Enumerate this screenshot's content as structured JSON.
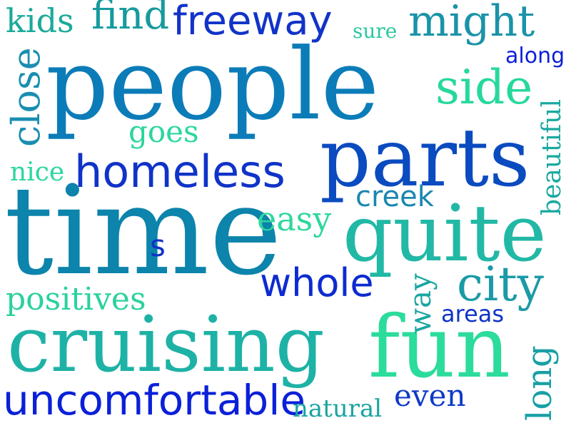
{
  "colors": {
    "teal": "#1a9a9a",
    "deep_blue": "#1133cc",
    "royal_blue": "#0a22d8",
    "cerulean": "#0a7ab8",
    "aqua_green": "#22c49a",
    "mint": "#2de39a",
    "ocean": "#0a8aa8"
  },
  "words": [
    "kids",
    "find",
    "freeway",
    "sure",
    "might",
    "along",
    "close",
    "people",
    "side",
    "goes",
    "beautiful",
    "nice",
    "homeless",
    "parts",
    "creek",
    "time",
    "easy",
    "quite",
    "s",
    "whole",
    "city",
    "positives",
    "way",
    "areas",
    "cruising",
    "fun",
    "uncomfortable",
    "even",
    "natural",
    "long"
  ]
}
